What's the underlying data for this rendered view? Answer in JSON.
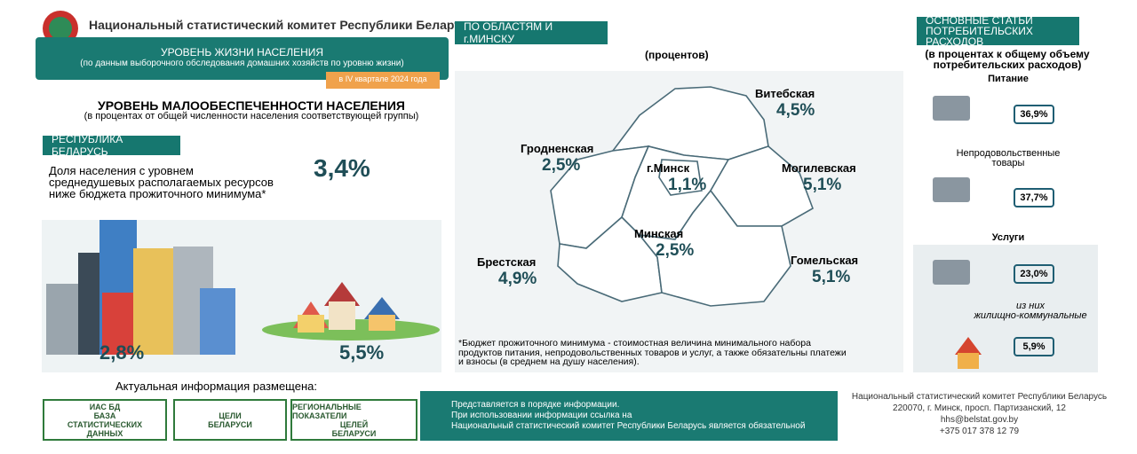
{
  "header": {
    "org_name": "Национальный статистический комитет Республики Беларусь",
    "banner_title": "УРОВЕНЬ ЖИЗНИ НАСЕЛЕНИЯ",
    "banner_subtitle": "(по данным выборочного обследования домашних хозяйств по уровню жизни)",
    "period": "в IV квартале 2024 года"
  },
  "poverty": {
    "title": "УРОВЕНЬ МАЛООБЕСПЕЧЕННОСТИ НАСЕЛЕНИЯ",
    "subtitle": "(в процентах от общей численности населения соответствующей группы)",
    "tag": "РЕСПУБЛИКА БЕЛАРУСЬ",
    "description": [
      "Доля населения с уровнем",
      "среднедушевых располагаемых ресурсов",
      "ниже бюджета прожиточного минимума*"
    ],
    "total": "3,4%",
    "urban": "2,8%",
    "rural": "5,5%"
  },
  "regions": {
    "tag": "ПО ОБЛАСТЯМ И г.МИНСКУ",
    "unit": "(процентов)",
    "items": [
      {
        "name": "Витебская",
        "value": "4,5%"
      },
      {
        "name": "Гродненская",
        "value": "2,5%"
      },
      {
        "name": "г.Минск",
        "value": "1,1%"
      },
      {
        "name": "Могилевская",
        "value": "5,1%"
      },
      {
        "name": "Минская",
        "value": "2,5%"
      },
      {
        "name": "Брестская",
        "value": "4,9%"
      },
      {
        "name": "Гомельская",
        "value": "5,1%"
      }
    ],
    "footnote": [
      "*Бюджет прожиточного минимума - стоимостная величина минимального набора",
      "продуктов питания, непродовольственных товаров и услуг, а также обязательны платежи",
      "и взносы (в среднем на душу населения)."
    ]
  },
  "expenses": {
    "tag": [
      "ОСНОВНЫЕ СТАТЬИ",
      "ПОТРЕБИТЕЛЬСКИХ РАСХОДОВ"
    ],
    "subtitle": [
      "(в процентах к общему объему",
      "потребительских расходов)"
    ],
    "items": [
      {
        "name": [
          "Питание"
        ],
        "value": "36,9%"
      },
      {
        "name": [
          "Непродовольственные",
          "товары"
        ],
        "value": "37,7%"
      },
      {
        "name": [
          "Услуги"
        ],
        "value": "23,0%"
      },
      {
        "name": [
          "из них",
          "жилищно-коммунальные"
        ],
        "value": "5,9%"
      }
    ]
  },
  "footer": {
    "info_title": "Актуальная информация размещена:",
    "links": [
      {
        "lines": [
          "ИАС БД",
          "БАЗА",
          "СТАТИСТИЧЕСКИХ",
          "ДАННЫХ"
        ]
      },
      {
        "lines": [
          "ЦЕЛИ",
          "БЕЛАРУСИ"
        ]
      },
      {
        "lines": [
          "РЕГИОНАЛЬНЫЕ ПОКАЗАТЕЛИ",
          "ЦЕЛЕЙ",
          "БЕЛАРУСИ"
        ]
      }
    ],
    "note": [
      "Представляется в порядке информации.",
      "При использовании информации ссылка на",
      "Национальный статистический комитет Республики Беларусь является обязательной"
    ],
    "contacts": [
      "Национальный статистический комитет Республики Беларусь",
      "220070, г. Минск, просп. Партизанский, 12",
      "hhs@belstat.gov.by",
      "+375 017 378 12 79"
    ]
  }
}
